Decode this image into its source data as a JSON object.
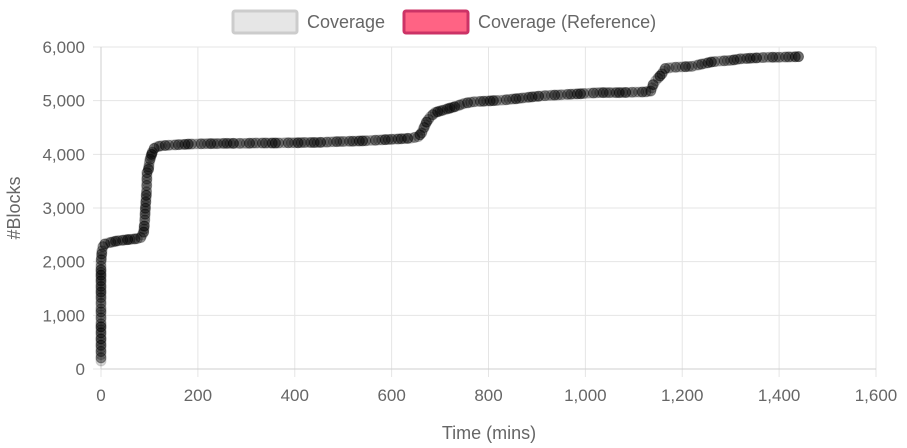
{
  "chart_data": {
    "type": "scatter",
    "xlabel": "Time (mins)",
    "ylabel": "#Blocks",
    "xlim": [
      0,
      1600
    ],
    "ylim": [
      0,
      6000
    ],
    "x_ticks": [
      "0",
      "200",
      "400",
      "600",
      "800",
      "1,000",
      "1,200",
      "1,400",
      "1,600"
    ],
    "y_ticks": [
      "0",
      "1,000",
      "2,000",
      "3,000",
      "4,000",
      "5,000",
      "6,000"
    ],
    "grid": true,
    "legend_position": "top",
    "series": [
      {
        "name": "Coverage",
        "color": "#000000",
        "legend_fill": "#e6e6e6",
        "legend_border": "#cccccc",
        "points": [
          [
            0,
            150
          ],
          [
            0,
            620
          ],
          [
            0,
            1120
          ],
          [
            0,
            1540
          ],
          [
            0,
            1850
          ],
          [
            0,
            1980
          ],
          [
            2,
            2200
          ],
          [
            4,
            2280
          ],
          [
            8,
            2330
          ],
          [
            15,
            2350
          ],
          [
            25,
            2370
          ],
          [
            35,
            2390
          ],
          [
            45,
            2400
          ],
          [
            55,
            2410
          ],
          [
            65,
            2420
          ],
          [
            75,
            2430
          ],
          [
            82,
            2450
          ],
          [
            88,
            2550
          ],
          [
            90,
            2720
          ],
          [
            92,
            3050
          ],
          [
            94,
            3300
          ],
          [
            95,
            3660
          ],
          [
            98,
            3720
          ],
          [
            100,
            3860
          ],
          [
            103,
            3960
          ],
          [
            106,
            4040
          ],
          [
            110,
            4110
          ],
          [
            115,
            4140
          ],
          [
            125,
            4160
          ],
          [
            140,
            4170
          ],
          [
            160,
            4180
          ],
          [
            180,
            4190
          ],
          [
            200,
            4195
          ],
          [
            220,
            4200
          ],
          [
            240,
            4200
          ],
          [
            260,
            4205
          ],
          [
            280,
            4205
          ],
          [
            300,
            4205
          ],
          [
            320,
            4210
          ],
          [
            340,
            4210
          ],
          [
            360,
            4210
          ],
          [
            380,
            4215
          ],
          [
            400,
            4215
          ],
          [
            420,
            4220
          ],
          [
            440,
            4220
          ],
          [
            460,
            4225
          ],
          [
            480,
            4235
          ],
          [
            500,
            4240
          ],
          [
            520,
            4245
          ],
          [
            540,
            4250
          ],
          [
            560,
            4260
          ],
          [
            580,
            4270
          ],
          [
            600,
            4280
          ],
          [
            620,
            4290
          ],
          [
            640,
            4300
          ],
          [
            655,
            4330
          ],
          [
            662,
            4400
          ],
          [
            667,
            4500
          ],
          [
            672,
            4600
          ],
          [
            680,
            4700
          ],
          [
            690,
            4780
          ],
          [
            705,
            4820
          ],
          [
            720,
            4860
          ],
          [
            735,
            4900
          ],
          [
            750,
            4950
          ],
          [
            770,
            4980
          ],
          [
            790,
            4990
          ],
          [
            810,
            5000
          ],
          [
            830,
            5010
          ],
          [
            850,
            5030
          ],
          [
            870,
            5050
          ],
          [
            890,
            5070
          ],
          [
            910,
            5090
          ],
          [
            930,
            5100
          ],
          [
            950,
            5110
          ],
          [
            970,
            5120
          ],
          [
            990,
            5130
          ],
          [
            1010,
            5140
          ],
          [
            1030,
            5150
          ],
          [
            1050,
            5150
          ],
          [
            1070,
            5150
          ],
          [
            1090,
            5155
          ],
          [
            1110,
            5160
          ],
          [
            1125,
            5165
          ],
          [
            1135,
            5180
          ],
          [
            1140,
            5300
          ],
          [
            1145,
            5370
          ],
          [
            1150,
            5420
          ],
          [
            1158,
            5500
          ],
          [
            1165,
            5600
          ],
          [
            1180,
            5620
          ],
          [
            1200,
            5630
          ],
          [
            1220,
            5640
          ],
          [
            1240,
            5680
          ],
          [
            1260,
            5720
          ],
          [
            1280,
            5740
          ],
          [
            1300,
            5750
          ],
          [
            1320,
            5780
          ],
          [
            1340,
            5790
          ],
          [
            1360,
            5800
          ],
          [
            1380,
            5810
          ],
          [
            1400,
            5810
          ],
          [
            1420,
            5815
          ],
          [
            1440,
            5820
          ]
        ]
      },
      {
        "name": "Coverage (Reference)",
        "color": "#ff6384",
        "legend_fill": "#ff6384",
        "legend_border": "#cc3366",
        "points": []
      }
    ]
  }
}
